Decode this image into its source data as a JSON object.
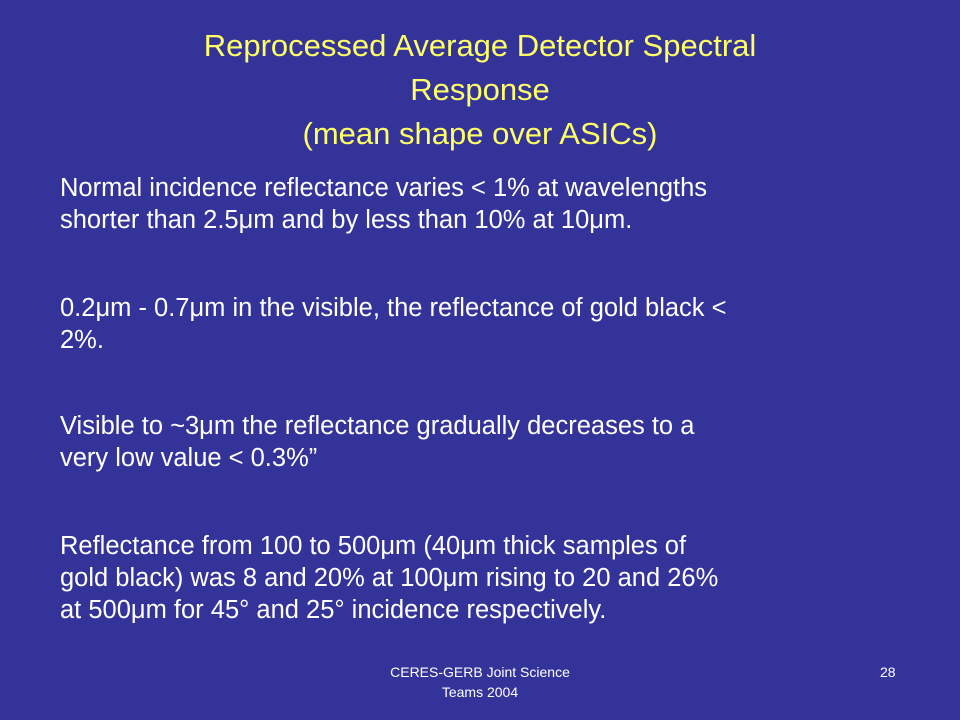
{
  "title": {
    "lines": [
      "Reprocessed Average Detector Spectral",
      "Response",
      "(mean shape over ASICs)"
    ]
  },
  "body": {
    "paragraphs": [
      {
        "lines": [
          "Normal incidence reflectance varies < 1% at wavelengths",
          "shorter than 2.5μm and by less than 10% at 10μm."
        ]
      },
      {
        "lines": [
          "0.2μm - 0.7μm in the visible, the reflectance of gold black <",
          "2%."
        ]
      },
      {
        "lines": [
          "Visible to ~3μm the reflectance gradually decreases to a",
          "very low value < 0.3%”"
        ]
      },
      {
        "lines": [
          "Reflectance from 100 to 500μm (40μm thick samples of",
          "gold black) was 8 and 20% at 100μm rising to 20 and 26%",
          "at 500μm for 45° and 25° incidence respectively."
        ]
      }
    ]
  },
  "footer": {
    "lines": [
      "CERES-GERB Joint Science",
      "Teams 2004"
    ],
    "page_number": "28"
  }
}
